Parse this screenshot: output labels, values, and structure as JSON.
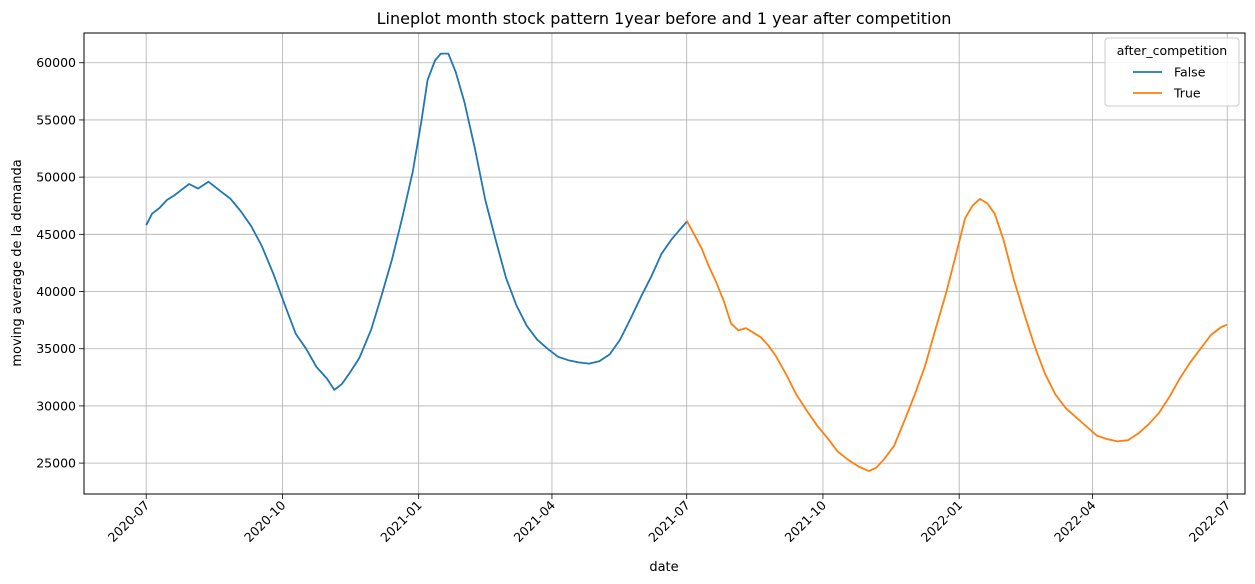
{
  "chart_data": {
    "type": "line",
    "title": "Lineplot month stock pattern 1year before and 1 year after competition",
    "xlabel": "date",
    "ylabel": "moving average de la demanda",
    "x_range": [
      "2020-05-20",
      "2022-07-13"
    ],
    "ylim": [
      22300,
      62600
    ],
    "x_ticks": [
      "2020-07",
      "2020-10",
      "2021-01",
      "2021-04",
      "2021-07",
      "2021-10",
      "2022-01",
      "2022-04",
      "2022-07"
    ],
    "y_ticks": [
      25000,
      30000,
      35000,
      40000,
      45000,
      50000,
      55000,
      60000
    ],
    "grid": true,
    "legend": {
      "title": "after_competition",
      "position": "top-right"
    },
    "series": [
      {
        "name": "False",
        "color": "#1f77b4",
        "points": [
          [
            "2020-07-01",
            45800
          ],
          [
            "2020-07-05",
            46800
          ],
          [
            "2020-07-10",
            47300
          ],
          [
            "2020-07-15",
            48000
          ],
          [
            "2020-07-20",
            48400
          ],
          [
            "2020-07-25",
            48900
          ],
          [
            "2020-07-30",
            49400
          ],
          [
            "2020-08-05",
            49000
          ],
          [
            "2020-08-12",
            49600
          ],
          [
            "2020-08-20",
            48800
          ],
          [
            "2020-08-27",
            48100
          ],
          [
            "2020-09-03",
            47000
          ],
          [
            "2020-09-10",
            45700
          ],
          [
            "2020-09-17",
            44000
          ],
          [
            "2020-09-25",
            41500
          ],
          [
            "2020-10-03",
            38700
          ],
          [
            "2020-10-10",
            36300
          ],
          [
            "2020-10-17",
            35000
          ],
          [
            "2020-10-24",
            33400
          ],
          [
            "2020-10-31",
            32400
          ],
          [
            "2020-11-05",
            31400
          ],
          [
            "2020-11-10",
            31900
          ],
          [
            "2020-11-15",
            32800
          ],
          [
            "2020-11-22",
            34200
          ],
          [
            "2020-11-30",
            36700
          ],
          [
            "2020-12-07",
            39700
          ],
          [
            "2020-12-14",
            42800
          ],
          [
            "2020-12-21",
            46500
          ],
          [
            "2020-12-28",
            50500
          ],
          [
            "2021-01-03",
            55000
          ],
          [
            "2021-01-07",
            58500
          ],
          [
            "2021-01-12",
            60200
          ],
          [
            "2021-01-16",
            60800
          ],
          [
            "2021-01-21",
            60800
          ],
          [
            "2021-01-26",
            59200
          ],
          [
            "2021-02-01",
            56500
          ],
          [
            "2021-02-08",
            52500
          ],
          [
            "2021-02-15",
            48000
          ],
          [
            "2021-02-22",
            44500
          ],
          [
            "2021-03-01",
            41200
          ],
          [
            "2021-03-08",
            38800
          ],
          [
            "2021-03-15",
            37000
          ],
          [
            "2021-03-22",
            35800
          ],
          [
            "2021-03-29",
            35000
          ],
          [
            "2021-04-05",
            34300
          ],
          [
            "2021-04-12",
            34000
          ],
          [
            "2021-04-19",
            33800
          ],
          [
            "2021-04-26",
            33700
          ],
          [
            "2021-05-03",
            33900
          ],
          [
            "2021-05-10",
            34500
          ],
          [
            "2021-05-17",
            35800
          ],
          [
            "2021-05-24",
            37600
          ],
          [
            "2021-05-31",
            39500
          ],
          [
            "2021-06-07",
            41300
          ],
          [
            "2021-06-14",
            43300
          ],
          [
            "2021-06-21",
            44600
          ],
          [
            "2021-07-01",
            46100
          ]
        ]
      },
      {
        "name": "True",
        "color": "#ff7f0e",
        "points": [
          [
            "2021-07-01",
            46200
          ],
          [
            "2021-07-06",
            45000
          ],
          [
            "2021-07-11",
            43800
          ],
          [
            "2021-07-16",
            42200
          ],
          [
            "2021-07-21",
            40800
          ],
          [
            "2021-07-26",
            39200
          ],
          [
            "2021-07-31",
            37200
          ],
          [
            "2021-08-05",
            36600
          ],
          [
            "2021-08-10",
            36800
          ],
          [
            "2021-08-15",
            36400
          ],
          [
            "2021-08-20",
            36000
          ],
          [
            "2021-08-25",
            35300
          ],
          [
            "2021-08-30",
            34400
          ],
          [
            "2021-09-06",
            32800
          ],
          [
            "2021-09-13",
            31000
          ],
          [
            "2021-09-20",
            29600
          ],
          [
            "2021-09-27",
            28300
          ],
          [
            "2021-10-04",
            27200
          ],
          [
            "2021-10-11",
            26000
          ],
          [
            "2021-10-18",
            25300
          ],
          [
            "2021-10-25",
            24700
          ],
          [
            "2021-11-01",
            24300
          ],
          [
            "2021-11-06",
            24600
          ],
          [
            "2021-11-11",
            25300
          ],
          [
            "2021-11-18",
            26500
          ],
          [
            "2021-11-25",
            28700
          ],
          [
            "2021-12-02",
            31000
          ],
          [
            "2021-12-09",
            33500
          ],
          [
            "2021-12-16",
            36700
          ],
          [
            "2021-12-23",
            39800
          ],
          [
            "2021-12-30",
            43300
          ],
          [
            "2022-01-05",
            46400
          ],
          [
            "2022-01-10",
            47500
          ],
          [
            "2022-01-15",
            48100
          ],
          [
            "2022-01-20",
            47700
          ],
          [
            "2022-01-25",
            46800
          ],
          [
            "2022-01-31",
            44500
          ],
          [
            "2022-02-07",
            41000
          ],
          [
            "2022-02-14",
            38000
          ],
          [
            "2022-02-21",
            35200
          ],
          [
            "2022-02-28",
            32800
          ],
          [
            "2022-03-07",
            31000
          ],
          [
            "2022-03-14",
            29800
          ],
          [
            "2022-03-21",
            29000
          ],
          [
            "2022-03-28",
            28200
          ],
          [
            "2022-04-04",
            27400
          ],
          [
            "2022-04-11",
            27100
          ],
          [
            "2022-04-18",
            26900
          ],
          [
            "2022-04-25",
            27000
          ],
          [
            "2022-05-02",
            27600
          ],
          [
            "2022-05-09",
            28400
          ],
          [
            "2022-05-16",
            29400
          ],
          [
            "2022-05-23",
            30800
          ],
          [
            "2022-05-30",
            32400
          ],
          [
            "2022-06-06",
            33800
          ],
          [
            "2022-06-13",
            35000
          ],
          [
            "2022-06-20",
            36200
          ],
          [
            "2022-06-27",
            36900
          ],
          [
            "2022-07-01",
            37100
          ]
        ]
      }
    ]
  }
}
